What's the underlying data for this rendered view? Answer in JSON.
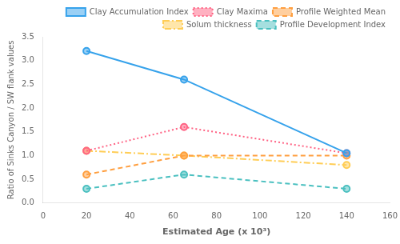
{
  "chart_data": {
    "type": "line",
    "x": [
      20,
      65,
      140
    ],
    "series": [
      {
        "name": "Clay Accumulation Index",
        "values": [
          3.2,
          2.6,
          1.05
        ],
        "line_style": "solid",
        "marker": "circle"
      },
      {
        "name": "Clay Maxima",
        "values": [
          1.1,
          1.6,
          1.05
        ],
        "line_style": "dotted",
        "marker": "circle"
      },
      {
        "name": "Profile Weighted Mean",
        "values": [
          0.6,
          1.0,
          1.0
        ],
        "line_style": "dashed",
        "marker": "circle"
      },
      {
        "name": "Solum thickness",
        "values": [
          1.1,
          1.0,
          0.8
        ],
        "line_style": "dashdot",
        "marker": "circle"
      },
      {
        "name": "Profile Development Index",
        "values": [
          0.3,
          0.6,
          0.3
        ],
        "line_style": "dashed",
        "marker": "circle"
      }
    ],
    "x_label": "Estimated Age (x 10³)",
    "y_label": "Ratio of Sinks Canyon / SW flank values",
    "xlim": [
      0,
      160
    ],
    "ylim": [
      0.0,
      3.5
    ],
    "xticks": [
      0,
      20,
      40,
      60,
      80,
      100,
      120,
      140,
      160
    ],
    "yticks": [
      {
        "value": 0,
        "label": "0.0"
      },
      0.5,
      {
        "value": 1,
        "label": "1.0"
      },
      1.5,
      {
        "value": 2,
        "label": "2.0"
      },
      2.5,
      {
        "value": 3,
        "label": "3.0"
      },
      3.5
    ],
    "grid": false,
    "legend": "upper right"
  }
}
